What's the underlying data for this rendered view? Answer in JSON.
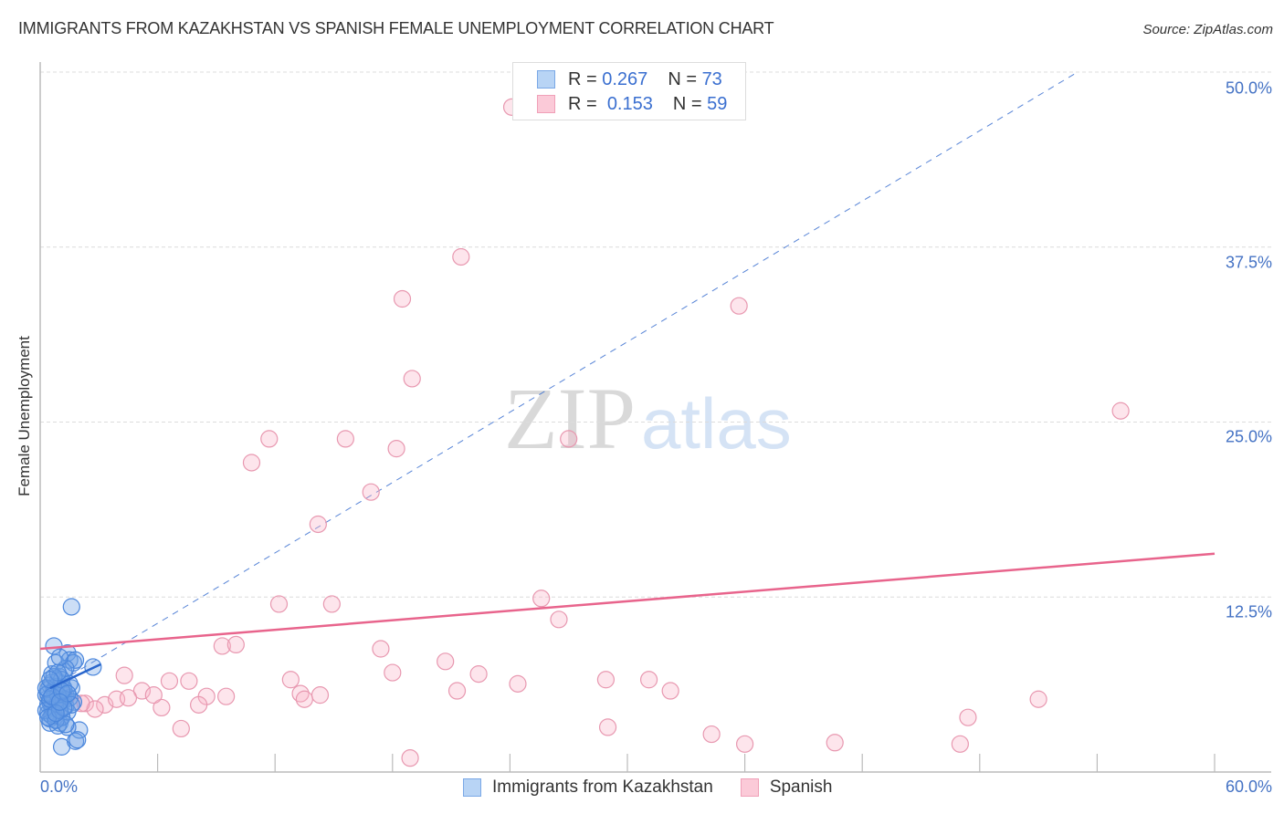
{
  "header": {
    "title": "IMMIGRANTS FROM KAZAKHSTAN VS SPANISH FEMALE UNEMPLOYMENT CORRELATION CHART",
    "source": "Source: ZipAtlas.com"
  },
  "legend": {
    "rows": [
      {
        "r_label": "R =",
        "r_value": "0.267",
        "n_label": "N =",
        "n_value": "73",
        "color": "#a8c8f0"
      },
      {
        "r_label": "R =",
        "r_value": "0.153",
        "n_label": "N =",
        "n_value": "59",
        "color": "#f8c0d0"
      }
    ]
  },
  "axes": {
    "ylabel": "Female Unemployment",
    "yticks": [
      "50.0%",
      "37.5%",
      "25.0%",
      "12.5%"
    ],
    "xtick_left": "0.0%",
    "xtick_right": "60.0%"
  },
  "bottom_legend": {
    "items": [
      {
        "label": "Immigrants from Kazakhstan",
        "color": "#a8c8f0"
      },
      {
        "label": "Spanish",
        "color": "#f8c0d0"
      }
    ]
  },
  "watermark": {
    "zip": "ZIP",
    "atlas": "atlas"
  },
  "colors": {
    "blue": "#3a7bd5",
    "blue_fill": "rgba(110,160,230,0.35)",
    "pink": "#e8648c",
    "pink_fill": "rgba(248,180,200,0.35)",
    "tick_label": "#4472c4"
  },
  "chart_data": {
    "type": "scatter",
    "title": "IMMIGRANTS FROM KAZAKHSTAN VS SPANISH FEMALE UNEMPLOYMENT CORRELATION CHART",
    "xlabel": "",
    "ylabel": "Female Unemployment",
    "xlim": [
      0,
      60
    ],
    "ylim": [
      0,
      50
    ],
    "ytick_labels": [
      "12.5%",
      "25.0%",
      "37.5%",
      "50.0%"
    ],
    "xtick_labels": [
      "0.0%",
      "60.0%"
    ],
    "grid": "horizontal dashed",
    "legend_position": "top-center and bottom",
    "series": [
      {
        "name": "Immigrants from Kazakhstan",
        "R": 0.267,
        "N": 73,
        "trend": {
          "x": [
            0.5,
            3.1
          ],
          "y": [
            6.0,
            7.7
          ],
          "extended_dashed_to": [
            53,
            50
          ]
        },
        "points": [
          [
            0.3,
            5.5
          ],
          [
            0.4,
            4.8
          ],
          [
            0.5,
            6.2
          ],
          [
            0.6,
            5.0
          ],
          [
            0.4,
            4.2
          ],
          [
            0.7,
            5.8
          ],
          [
            0.8,
            4.5
          ],
          [
            0.5,
            3.8
          ],
          [
            0.9,
            6.5
          ],
          [
            1.0,
            5.2
          ],
          [
            0.6,
            7.0
          ],
          [
            0.8,
            7.8
          ],
          [
            1.1,
            4.0
          ],
          [
            1.2,
            6.0
          ],
          [
            1.0,
            3.5
          ],
          [
            1.3,
            5.5
          ],
          [
            0.7,
            9.0
          ],
          [
            1.4,
            8.5
          ],
          [
            1.5,
            8.0
          ],
          [
            1.2,
            7.2
          ],
          [
            1.7,
            7.8
          ],
          [
            1.8,
            8.0
          ],
          [
            1.6,
            6.0
          ],
          [
            2.0,
            3.0
          ],
          [
            1.4,
            3.2
          ],
          [
            1.1,
            1.8
          ],
          [
            1.8,
            2.2
          ],
          [
            1.9,
            2.3
          ],
          [
            1.6,
            11.8
          ],
          [
            2.7,
            7.5
          ],
          [
            0.5,
            5.0
          ],
          [
            0.6,
            4.6
          ],
          [
            0.7,
            5.3
          ],
          [
            0.8,
            5.7
          ],
          [
            0.9,
            4.9
          ],
          [
            0.4,
            5.9
          ],
          [
            0.3,
            4.4
          ],
          [
            1.0,
            6.8
          ],
          [
            1.2,
            5.1
          ],
          [
            1.3,
            4.7
          ],
          [
            0.5,
            3.5
          ],
          [
            0.9,
            3.3
          ],
          [
            1.1,
            3.9
          ],
          [
            1.5,
            5.3
          ],
          [
            1.7,
            5.0
          ],
          [
            0.6,
            6.4
          ],
          [
            0.8,
            6.1
          ],
          [
            0.4,
            5.6
          ],
          [
            1.3,
            7.4
          ],
          [
            1.0,
            8.2
          ],
          [
            0.7,
            4.1
          ],
          [
            1.4,
            4.3
          ],
          [
            0.9,
            5.5
          ],
          [
            1.2,
            5.9
          ],
          [
            0.5,
            5.2
          ],
          [
            0.6,
            4.0
          ],
          [
            0.8,
            3.7
          ],
          [
            1.1,
            6.6
          ],
          [
            1.5,
            6.3
          ],
          [
            1.6,
            4.8
          ],
          [
            0.3,
            6.0
          ],
          [
            0.4,
            3.9
          ],
          [
            0.7,
            6.8
          ],
          [
            1.0,
            4.4
          ],
          [
            1.3,
            3.4
          ],
          [
            0.9,
            7.1
          ],
          [
            1.2,
            4.6
          ],
          [
            0.6,
            5.4
          ],
          [
            0.8,
            4.2
          ],
          [
            1.1,
            5.8
          ],
          [
            1.4,
            5.6
          ],
          [
            0.5,
            6.6
          ],
          [
            1.0,
            5.0
          ]
        ]
      },
      {
        "name": "Spanish",
        "R": 0.153,
        "N": 59,
        "trend": {
          "x": [
            0,
            60
          ],
          "y": [
            8.8,
            15.6
          ]
        },
        "points": [
          [
            24.1,
            47.5
          ],
          [
            21.5,
            36.8
          ],
          [
            18.5,
            33.8
          ],
          [
            35.7,
            33.3
          ],
          [
            19.0,
            28.1
          ],
          [
            55.2,
            25.8
          ],
          [
            11.7,
            23.8
          ],
          [
            15.6,
            23.8
          ],
          [
            18.2,
            23.1
          ],
          [
            27.0,
            23.8
          ],
          [
            10.8,
            22.1
          ],
          [
            16.9,
            20.0
          ],
          [
            14.2,
            17.7
          ],
          [
            12.2,
            12.0
          ],
          [
            14.9,
            12.0
          ],
          [
            25.6,
            12.4
          ],
          [
            26.5,
            10.9
          ],
          [
            9.3,
            9.0
          ],
          [
            10.0,
            9.1
          ],
          [
            17.4,
            8.8
          ],
          [
            20.7,
            7.9
          ],
          [
            22.4,
            7.0
          ],
          [
            24.4,
            6.3
          ],
          [
            28.9,
            6.6
          ],
          [
            31.1,
            6.6
          ],
          [
            32.2,
            5.8
          ],
          [
            12.8,
            6.6
          ],
          [
            14.3,
            5.5
          ],
          [
            18.0,
            7.1
          ],
          [
            21.3,
            5.8
          ],
          [
            4.3,
            6.9
          ],
          [
            5.2,
            5.8
          ],
          [
            6.6,
            6.5
          ],
          [
            7.6,
            6.5
          ],
          [
            8.5,
            5.4
          ],
          [
            9.5,
            5.4
          ],
          [
            6.2,
            4.6
          ],
          [
            8.1,
            4.8
          ],
          [
            3.3,
            4.8
          ],
          [
            3.9,
            5.2
          ],
          [
            4.5,
            5.3
          ],
          [
            5.8,
            5.5
          ],
          [
            2.3,
            4.9
          ],
          [
            2.8,
            4.5
          ],
          [
            2.1,
            4.9
          ],
          [
            7.2,
            3.1
          ],
          [
            13.3,
            5.6
          ],
          [
            13.5,
            5.2
          ],
          [
            1.2,
            5.5
          ],
          [
            1.0,
            4.8
          ],
          [
            0.8,
            5.2
          ],
          [
            18.9,
            1.0
          ],
          [
            29.0,
            3.2
          ],
          [
            34.3,
            2.7
          ],
          [
            36.0,
            2.0
          ],
          [
            40.6,
            2.1
          ],
          [
            47.4,
            3.9
          ],
          [
            47.0,
            2.0
          ],
          [
            51.0,
            5.2
          ]
        ]
      }
    ]
  }
}
